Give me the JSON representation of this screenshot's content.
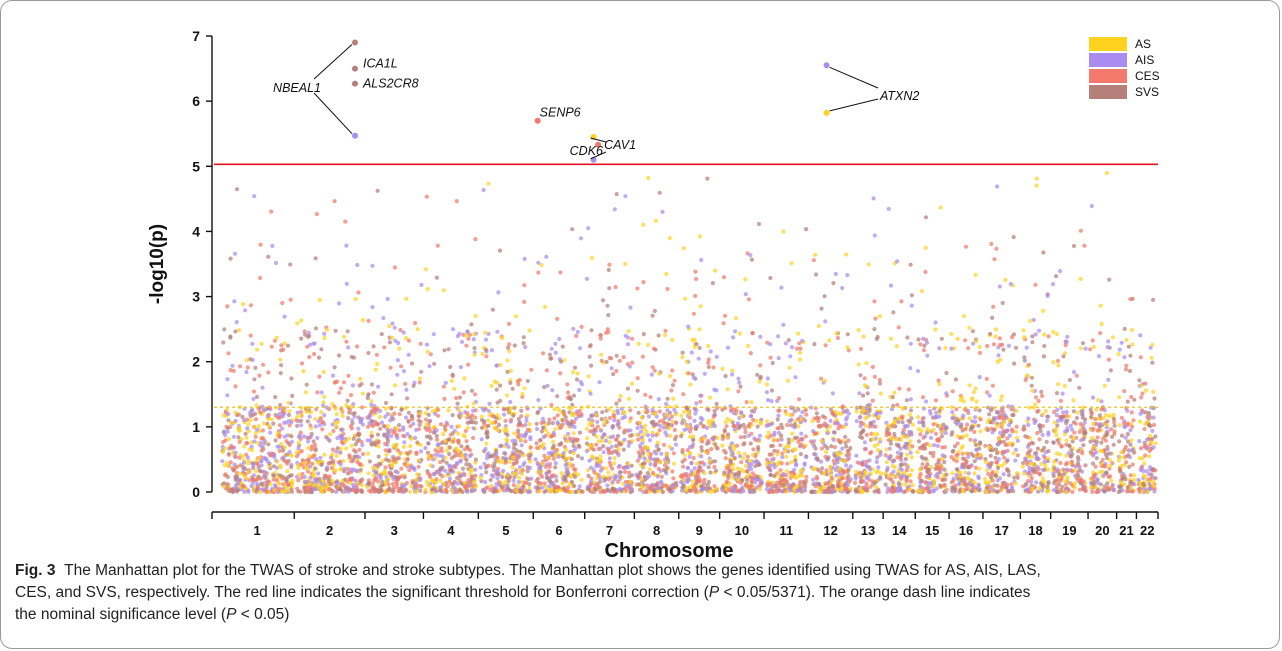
{
  "chart_data": {
    "type": "scatter",
    "subtype": "manhattan",
    "xlabel": "Chromosome",
    "ylabel": "-log10(p)",
    "ylim": [
      0,
      7
    ],
    "yticks": [
      0,
      1,
      2,
      3,
      4,
      5,
      6,
      7
    ],
    "chromosomes": [
      "1",
      "2",
      "3",
      "4",
      "5",
      "6",
      "7",
      "8",
      "9",
      "10",
      "11",
      "12",
      "13",
      "14",
      "15",
      "16",
      "17",
      "18",
      "19",
      "20",
      "21",
      "22"
    ],
    "chrom_weights": [
      2.0,
      1.9,
      1.55,
      1.45,
      1.45,
      1.35,
      1.3,
      1.15,
      1.05,
      1.15,
      1.15,
      1.15,
      0.75,
      0.8,
      0.85,
      0.85,
      0.95,
      0.75,
      0.95,
      0.7,
      0.45,
      0.5
    ],
    "series": [
      {
        "name": "AS",
        "color": "#ffd21f"
      },
      {
        "name": "AIS",
        "color": "#a98cf0"
      },
      {
        "name": "CES",
        "color": "#f2796b"
      },
      {
        "name": "SVS",
        "color": "#b5807a"
      }
    ],
    "thresholds": [
      {
        "value": 5.03,
        "color": "#e0161b",
        "style": "solid"
      },
      {
        "value": 1.301,
        "color": "#f0c020",
        "style": "dashed"
      }
    ],
    "significant_points": [
      {
        "gene": "ICA1L",
        "chrom": "2",
        "pos": 0.88,
        "y": 6.9,
        "series": "SVS"
      },
      {
        "gene": "ALS2CR8",
        "chrom": "2",
        "pos": 0.88,
        "y": 6.5,
        "series": "SVS"
      },
      {
        "gene": "",
        "chrom": "2",
        "pos": 0.88,
        "y": 6.27,
        "series": "SVS"
      },
      {
        "gene": "NBEAL1",
        "chrom": "2",
        "pos": 0.88,
        "y": 5.47,
        "series": "AIS"
      },
      {
        "gene": "SENP6",
        "chrom": "6",
        "pos": 0.05,
        "y": 5.7,
        "series": "CES"
      },
      {
        "gene": "CDK6",
        "chrom": "7",
        "pos": 0.15,
        "y": 5.45,
        "series": "AS"
      },
      {
        "gene": "",
        "chrom": "7",
        "pos": 0.15,
        "y": 5.1,
        "series": "AIS"
      },
      {
        "gene": "CAV1",
        "chrom": "7",
        "pos": 0.25,
        "y": 5.33,
        "series": "CES"
      },
      {
        "gene": "ATXN2",
        "chrom": "12",
        "pos": 0.4,
        "y": 6.55,
        "series": "AIS"
      },
      {
        "gene": "",
        "chrom": "12",
        "pos": 0.4,
        "y": 5.82,
        "series": "AS"
      }
    ],
    "gene_labels": [
      {
        "text": "NBEAL1"
      },
      {
        "text": "ICA1L"
      },
      {
        "text": "ALS2CR8"
      },
      {
        "text": "SENP6"
      },
      {
        "text": "CDK6"
      },
      {
        "text": "CAV1"
      },
      {
        "text": "ATXN2"
      }
    ]
  },
  "caption": {
    "fig_label": "Fig. 3",
    "line1_text": "The Manhattan plot for the TWAS of stroke and stroke subtypes. The Manhattan plot shows the genes identified using TWAS for AS, AIS, LAS,",
    "line2_a": "CES, and SVS, respectively. The red line indicates the significant threshold for Bonferroni correction (",
    "line2_p": "P",
    "line2_b": " < 0.05/5371). The orange dash line indicates",
    "line3_a": "the nominal significance level (",
    "line3_p": "P",
    "line3_b": " < 0.05)"
  }
}
